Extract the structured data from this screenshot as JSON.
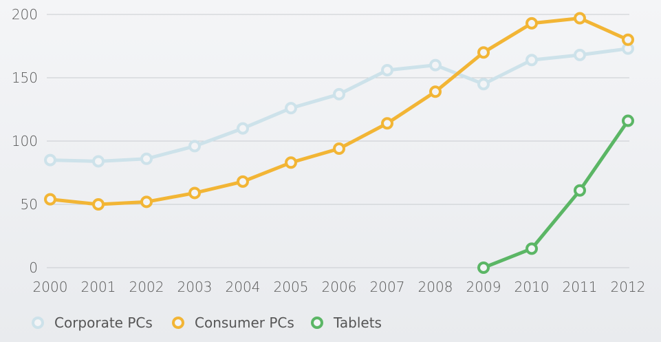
{
  "chart_data": {
    "type": "line",
    "title": "",
    "xlabel": "",
    "ylabel": "",
    "x": [
      "2000",
      "2001",
      "2002",
      "2003",
      "2004",
      "2005",
      "2006",
      "2007",
      "2008",
      "2009",
      "2010",
      "2011",
      "2012"
    ],
    "ylim": [
      0,
      200
    ],
    "yticks": [
      "0",
      "50",
      "100",
      "150",
      "200"
    ],
    "grid": true,
    "legend_position": "bottom-left",
    "series": [
      {
        "name": "Corporate PCs",
        "color": "#cde2ea",
        "values": [
          85,
          84,
          86,
          96,
          110,
          126,
          137,
          156,
          160,
          145,
          164,
          168,
          173
        ]
      },
      {
        "name": "Consumer PCs",
        "color": "#f2b535",
        "values": [
          54,
          50,
          52,
          59,
          68,
          83,
          94,
          114,
          139,
          170,
          193,
          197,
          180
        ]
      },
      {
        "name": "Tablets",
        "color": "#5bb665",
        "values": [
          null,
          null,
          null,
          null,
          null,
          null,
          null,
          null,
          null,
          0,
          15,
          61,
          116
        ]
      }
    ]
  }
}
